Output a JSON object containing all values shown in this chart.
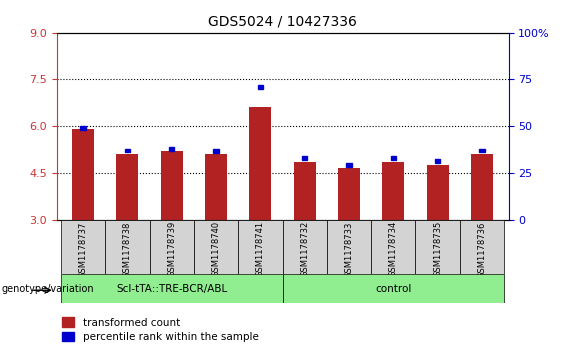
{
  "title": "GDS5024 / 10427336",
  "samples": [
    "GSM1178737",
    "GSM1178738",
    "GSM1178739",
    "GSM1178740",
    "GSM1178741",
    "GSM1178732",
    "GSM1178733",
    "GSM1178734",
    "GSM1178735",
    "GSM1178736"
  ],
  "red_values": [
    5.9,
    5.1,
    5.2,
    5.1,
    6.6,
    4.85,
    4.65,
    4.85,
    4.75,
    5.1
  ],
  "blue_values": [
    5.95,
    5.22,
    5.27,
    5.2,
    7.25,
    4.98,
    4.75,
    4.98,
    4.87,
    5.22
  ],
  "bar_bottom": 3.0,
  "ylim_left": [
    3,
    9
  ],
  "ylim_right": [
    0,
    100
  ],
  "yticks_left": [
    3,
    4.5,
    6,
    7.5,
    9
  ],
  "yticks_right": [
    0,
    25,
    50,
    75,
    100
  ],
  "ytick_labels_right": [
    "0",
    "25",
    "50",
    "75",
    "100%"
  ],
  "group1_label": "Scl-tTA::TRE-BCR/ABL",
  "group2_label": "control",
  "group1_count": 5,
  "group2_count": 5,
  "genotype_label": "genotype/variation",
  "legend_red": "transformed count",
  "legend_blue": "percentile rank within the sample",
  "bar_color": "#b22222",
  "blue_color": "#0000cc",
  "group_color": "#90ee90",
  "label_box_color": "#d3d3d3",
  "bar_width": 0.5,
  "dotted_gridlines": [
    4.5,
    6.0,
    7.5
  ],
  "left_tick_color": "#cc3333",
  "right_tick_color": "#0000cc"
}
